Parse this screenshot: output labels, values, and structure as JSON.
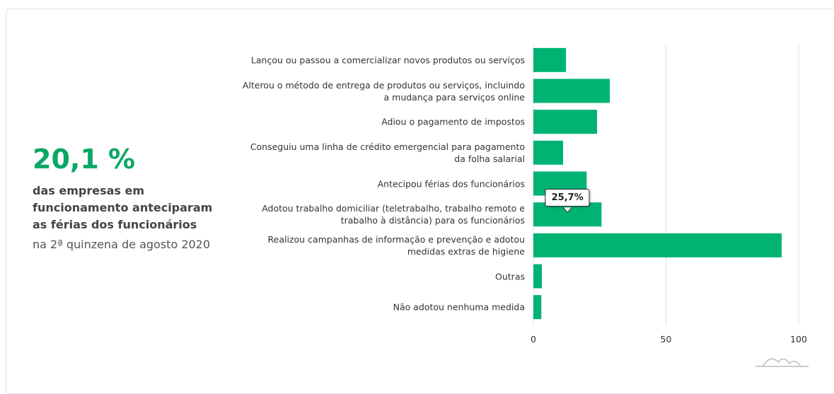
{
  "summary": {
    "headline": "20,1 %",
    "description": "das empresas em funcionamento anteciparam as férias dos funcionários",
    "period": "na 2ª quinzena de agosto 2020"
  },
  "chart_data": {
    "type": "hbar",
    "orientation": "horizontal",
    "categories": [
      "Lançou ou passou a comercializar novos produtos ou serviços",
      "Alterou o método de entrega de produtos ou serviços, incluindo a mudança para serviços online",
      "Adiou o pagamento de impostos",
      "Conseguiu uma linha de crédito emergencial para pagamento da folha salarial",
      "Antecipou férias dos funcionários",
      "Adotou trabalho domiciliar (teletrabalho, trabalho remoto e trabalho à distância) para os funcionários",
      "Realizou campanhas de informação e prevenção e adotou medidas extras de higiene",
      "Outras",
      "Não adotou nenhuma medida"
    ],
    "values": [
      12.3,
      28.8,
      24.0,
      11.2,
      20.1,
      25.7,
      93.6,
      3.2,
      3.0
    ],
    "value_labels": [
      null,
      null,
      null,
      null,
      null,
      "25,7%",
      null,
      null,
      null
    ],
    "color": "#00b373",
    "xlim": [
      0,
      105
    ],
    "xticks": [
      0,
      50,
      100
    ],
    "grid": true
  }
}
